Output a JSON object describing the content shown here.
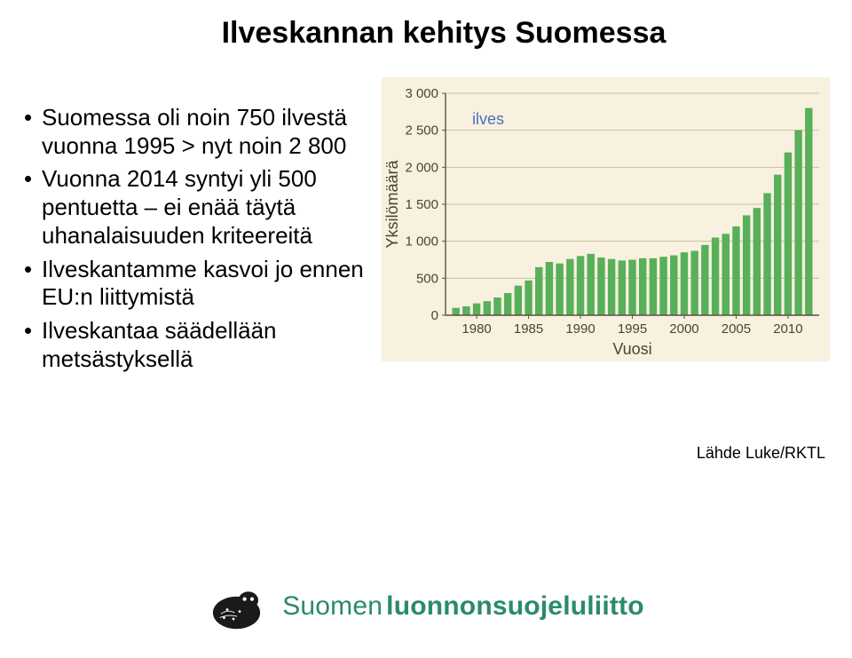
{
  "title": "Ilveskannan kehitys Suomessa",
  "bullets": [
    "Suomessa oli noin 750 ilvestä vuonna 1995 > nyt noin 2 800",
    "Vuonna 2014 syntyi yli 500 pentuetta – ei enää täytä uhanalaisuuden kriteereitä",
    "Ilveskantamme kasvoi jo ennen EU:n liittymistä",
    "Ilveskantaa säädellään metsästyksellä"
  ],
  "source": "Lähde Luke/RKTL",
  "logo": {
    "part1": "Suomen",
    "part2": "luonnonsuojeluliitto",
    "color": "#2a8a6e"
  },
  "chart": {
    "type": "bar",
    "background_color": "#f9f1df",
    "bar_color": "#58b05a",
    "grid_color": "#c9bfa0",
    "axis_color": "#5a5340",
    "text_color": "#4a4430",
    "series_label": "ilves",
    "series_label_color": "#4a6fbf",
    "ylabel": "Yksilömäärä",
    "xlabel": "Vuosi",
    "font_family": "Arial",
    "label_fontsize": 18,
    "tick_fontsize": 15,
    "series_label_fontsize": 18,
    "ylim": [
      0,
      3000
    ],
    "ytick_step": 500,
    "xtick_step": 5,
    "xlim": [
      1977,
      2013
    ],
    "years": [
      1978,
      1979,
      1980,
      1981,
      1982,
      1983,
      1984,
      1985,
      1986,
      1987,
      1988,
      1989,
      1990,
      1991,
      1992,
      1993,
      1994,
      1995,
      1996,
      1997,
      1998,
      1999,
      2000,
      2001,
      2002,
      2003,
      2004,
      2005,
      2006,
      2007,
      2008,
      2009,
      2010,
      2011,
      2012
    ],
    "values": [
      100,
      120,
      160,
      190,
      240,
      300,
      400,
      470,
      650,
      720,
      700,
      760,
      800,
      830,
      780,
      760,
      740,
      750,
      770,
      770,
      790,
      810,
      850,
      870,
      950,
      1050,
      1100,
      1200,
      1350,
      1450,
      1650,
      1900,
      2200,
      2500,
      2800
    ],
    "bar_width_ratio": 0.72
  }
}
